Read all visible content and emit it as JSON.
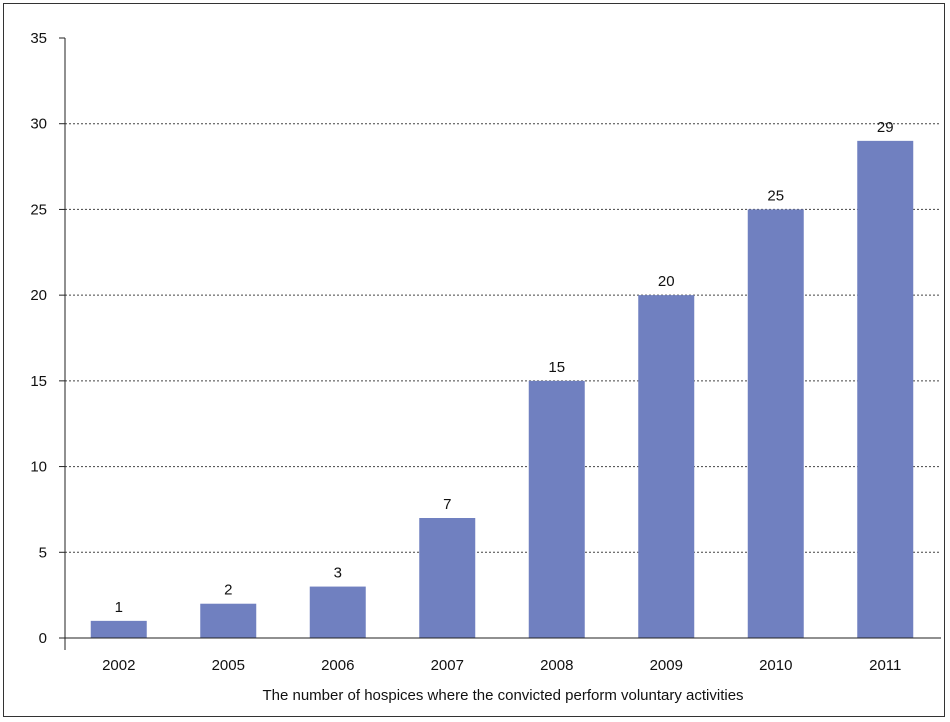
{
  "chart_data": {
    "type": "bar",
    "categories": [
      "2002",
      "2005",
      "2006",
      "2007",
      "2008",
      "2009",
      "2010",
      "2011"
    ],
    "values": [
      1,
      2,
      3,
      7,
      15,
      20,
      25,
      29
    ],
    "data_labels": [
      "1",
      "2",
      "3",
      "7",
      "15",
      "20",
      "25",
      "29"
    ],
    "title": "",
    "xlabel": "The number of hospices where the convicted perform voluntary activities",
    "ylabel": "",
    "ylim": [
      0,
      35
    ],
    "yticks": [
      0,
      5,
      10,
      15,
      20,
      25,
      30,
      35
    ],
    "grid": true,
    "bar_color": "#7080c0"
  }
}
